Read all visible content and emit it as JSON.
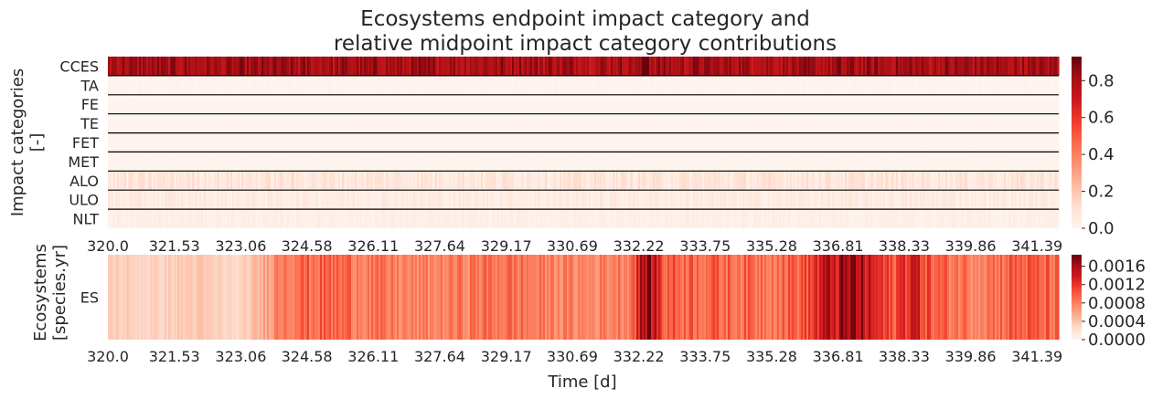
{
  "title": {
    "line1": "Ecosystems endpoint impact category and",
    "line2": "relative midpoint impact category contributions"
  },
  "chart_data": [
    {
      "type": "heatmap",
      "name": "midpoint-contributions",
      "ylabel": "Impact categories\n[-]",
      "rows": [
        "CCES",
        "TA",
        "FE",
        "TE",
        "FET",
        "MET",
        "ALO",
        "ULO",
        "NLT"
      ],
      "row_mean_values": [
        0.8,
        0.01,
        0.005,
        0.005,
        0.005,
        0.005,
        0.08,
        0.05,
        0.03
      ],
      "x_ticks": [
        "320.0",
        "321.53",
        "323.06",
        "324.58",
        "326.11",
        "327.64",
        "329.17",
        "330.69",
        "332.22",
        "333.75",
        "335.28",
        "336.81",
        "338.33",
        "339.86",
        "341.39"
      ],
      "xlim": [
        320.0,
        341.89
      ],
      "colorbar_ticks": [
        "0.0",
        "0.2",
        "0.4",
        "0.6",
        "0.8"
      ],
      "vmin": 0.0,
      "vmax": 0.93,
      "colormap": "Reds"
    },
    {
      "type": "heatmap",
      "name": "ecosystems-endpoint",
      "ylabel": "Ecosystems\n[species.yr]",
      "rows": [
        "ES"
      ],
      "time_profile": [
        {
          "t": 320.0,
          "v": 0.00035
        },
        {
          "t": 321.0,
          "v": 0.0003
        },
        {
          "t": 322.0,
          "v": 0.00038
        },
        {
          "t": 323.0,
          "v": 0.00025
        },
        {
          "t": 323.5,
          "v": 0.0005
        },
        {
          "t": 324.0,
          "v": 0.0009
        },
        {
          "t": 325.0,
          "v": 0.00095
        },
        {
          "t": 326.0,
          "v": 0.00085
        },
        {
          "t": 327.0,
          "v": 0.00075
        },
        {
          "t": 328.0,
          "v": 0.0008
        },
        {
          "t": 329.0,
          "v": 0.0009
        },
        {
          "t": 330.0,
          "v": 0.0008
        },
        {
          "t": 331.0,
          "v": 0.00075
        },
        {
          "t": 332.0,
          "v": 0.00085
        },
        {
          "t": 332.4,
          "v": 0.00175
        },
        {
          "t": 332.8,
          "v": 0.001
        },
        {
          "t": 334.0,
          "v": 0.00095
        },
        {
          "t": 335.0,
          "v": 0.0009
        },
        {
          "t": 336.0,
          "v": 0.001
        },
        {
          "t": 336.5,
          "v": 0.0014
        },
        {
          "t": 337.2,
          "v": 0.0016
        },
        {
          "t": 338.0,
          "v": 0.001
        },
        {
          "t": 338.5,
          "v": 0.0014
        },
        {
          "t": 339.0,
          "v": 0.00095
        },
        {
          "t": 340.0,
          "v": 0.00085
        },
        {
          "t": 341.0,
          "v": 0.001
        },
        {
          "t": 341.89,
          "v": 0.0009
        }
      ],
      "x_ticks": [
        "320.0",
        "321.53",
        "323.06",
        "324.58",
        "326.11",
        "327.64",
        "329.17",
        "330.69",
        "332.22",
        "333.75",
        "335.28",
        "336.81",
        "338.33",
        "339.86",
        "341.39"
      ],
      "xlabel": "Time [d]",
      "xlim": [
        320.0,
        341.89
      ],
      "colorbar_ticks": [
        "0.0000",
        "0.0004",
        "0.0008",
        "0.0012",
        "0.0016"
      ],
      "vmin": 0.0,
      "vmax": 0.00185,
      "colormap": "Reds"
    }
  ]
}
